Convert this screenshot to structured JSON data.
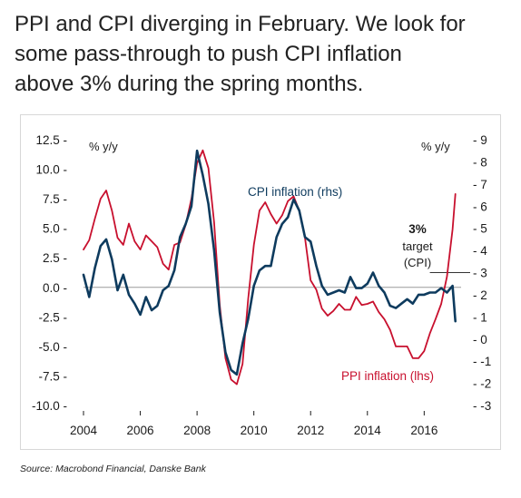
{
  "title_lines": [
    "PPI and CPI diverging in February. We look for",
    "some pass-through to push CPI inflation",
    "above 3% during the spring months."
  ],
  "source": "Source: Macrobond Financial, Danske Bank",
  "colors": {
    "cpi": "#0e3b5e",
    "ppi": "#c8102e",
    "zero_line": "#9a9a9a",
    "target_line": "#333333",
    "frame": "#d7d7d7"
  },
  "chart_data": {
    "type": "line",
    "left_axis_label": "% y/y",
    "right_axis_label": "% y/y",
    "left_ticks": [
      "12.5",
      "10.0",
      "7.5",
      "5.0",
      "2.5",
      "0.0",
      "-2.5",
      "-5.0",
      "-7.5",
      "-10.0"
    ],
    "right_ticks": [
      "9",
      "8",
      "7",
      "6",
      "5",
      "4",
      "3",
      "2",
      "1",
      "0",
      "-1",
      "-2",
      "-3"
    ],
    "x_ticks": [
      "2004",
      "2006",
      "2008",
      "2010",
      "2012",
      "2014",
      "2016"
    ],
    "ylim_left": [
      -10.0,
      12.5
    ],
    "ylim_right": [
      -3,
      9
    ],
    "xlim": [
      2004.0,
      2017.3
    ],
    "annotations": {
      "cpi_label": "CPI inflation (rhs)",
      "ppi_label": "PPI inflation (lhs)",
      "target_lines": [
        "3%",
        "target",
        "(CPI)"
      ]
    },
    "target_value_rhs": 3,
    "series": [
      {
        "name": "CPI inflation (rhs)",
        "axis": "right",
        "x": [
          2004.0,
          2004.2,
          2004.4,
          2004.6,
          2004.8,
          2005.0,
          2005.2,
          2005.4,
          2005.6,
          2005.8,
          2006.0,
          2006.2,
          2006.4,
          2006.6,
          2006.8,
          2007.0,
          2007.2,
          2007.4,
          2007.6,
          2007.8,
          2008.0,
          2008.2,
          2008.4,
          2008.6,
          2008.8,
          2009.0,
          2009.2,
          2009.4,
          2009.6,
          2009.8,
          2010.0,
          2010.2,
          2010.4,
          2010.6,
          2010.8,
          2011.0,
          2011.2,
          2011.4,
          2011.6,
          2011.8,
          2012.0,
          2012.2,
          2012.4,
          2012.6,
          2012.8,
          2013.0,
          2013.2,
          2013.4,
          2013.6,
          2013.8,
          2014.0,
          2014.2,
          2014.4,
          2014.6,
          2014.8,
          2015.0,
          2015.2,
          2015.4,
          2015.6,
          2015.8,
          2016.0,
          2016.2,
          2016.4,
          2016.6,
          2016.8,
          2017.0,
          2017.1
        ],
        "values": [
          2.9,
          1.9,
          3.2,
          4.2,
          4.5,
          3.6,
          2.2,
          2.9,
          2.0,
          1.6,
          1.1,
          1.9,
          1.3,
          1.5,
          2.2,
          2.4,
          3.1,
          4.6,
          5.2,
          6.0,
          8.5,
          7.4,
          6.1,
          4.0,
          1.2,
          -0.6,
          -1.4,
          -1.6,
          -0.2,
          0.9,
          2.4,
          3.1,
          3.3,
          3.3,
          4.6,
          5.2,
          5.5,
          6.3,
          5.8,
          4.6,
          4.4,
          3.3,
          2.4,
          2.0,
          2.1,
          2.2,
          2.1,
          2.8,
          2.3,
          2.3,
          2.5,
          3.0,
          2.4,
          2.1,
          1.5,
          1.4,
          1.6,
          1.8,
          1.6,
          2.0,
          2.0,
          2.1,
          2.1,
          2.3,
          2.1,
          2.4,
          0.8
        ]
      },
      {
        "name": "PPI inflation (lhs)",
        "axis": "left",
        "x": [
          2004.0,
          2004.2,
          2004.4,
          2004.6,
          2004.8,
          2005.0,
          2005.2,
          2005.4,
          2005.6,
          2005.8,
          2006.0,
          2006.2,
          2006.4,
          2006.6,
          2006.8,
          2007.0,
          2007.2,
          2007.4,
          2007.6,
          2007.8,
          2008.0,
          2008.2,
          2008.4,
          2008.6,
          2008.8,
          2009.0,
          2009.2,
          2009.4,
          2009.6,
          2009.8,
          2010.0,
          2010.2,
          2010.4,
          2010.6,
          2010.8,
          2011.0,
          2011.2,
          2011.4,
          2011.6,
          2011.8,
          2012.0,
          2012.2,
          2012.4,
          2012.6,
          2012.8,
          2013.0,
          2013.2,
          2013.4,
          2013.6,
          2013.8,
          2014.0,
          2014.2,
          2014.4,
          2014.6,
          2014.8,
          2015.0,
          2015.2,
          2015.4,
          2015.6,
          2015.8,
          2016.0,
          2016.2,
          2016.4,
          2016.6,
          2016.8,
          2017.0,
          2017.1
        ],
        "values": [
          3.2,
          4.0,
          5.8,
          7.5,
          8.2,
          6.5,
          4.2,
          3.6,
          5.4,
          3.9,
          3.2,
          4.4,
          3.9,
          3.4,
          2.0,
          1.5,
          3.6,
          3.8,
          5.3,
          7.5,
          10.5,
          11.6,
          10.1,
          5.5,
          -1.5,
          -6.0,
          -7.8,
          -8.2,
          -6.5,
          -1.0,
          3.6,
          6.5,
          7.2,
          6.2,
          5.4,
          6.1,
          7.3,
          7.7,
          6.5,
          4.2,
          0.6,
          -0.2,
          -1.8,
          -2.4,
          -2.0,
          -1.4,
          -1.9,
          -1.9,
          -0.8,
          -1.5,
          -1.4,
          -1.2,
          -2.1,
          -2.7,
          -3.6,
          -5.0,
          -5.0,
          -5.0,
          -6.0,
          -6.0,
          -5.4,
          -3.9,
          -2.7,
          -1.4,
          0.9,
          4.9,
          7.9
        ]
      }
    ]
  }
}
